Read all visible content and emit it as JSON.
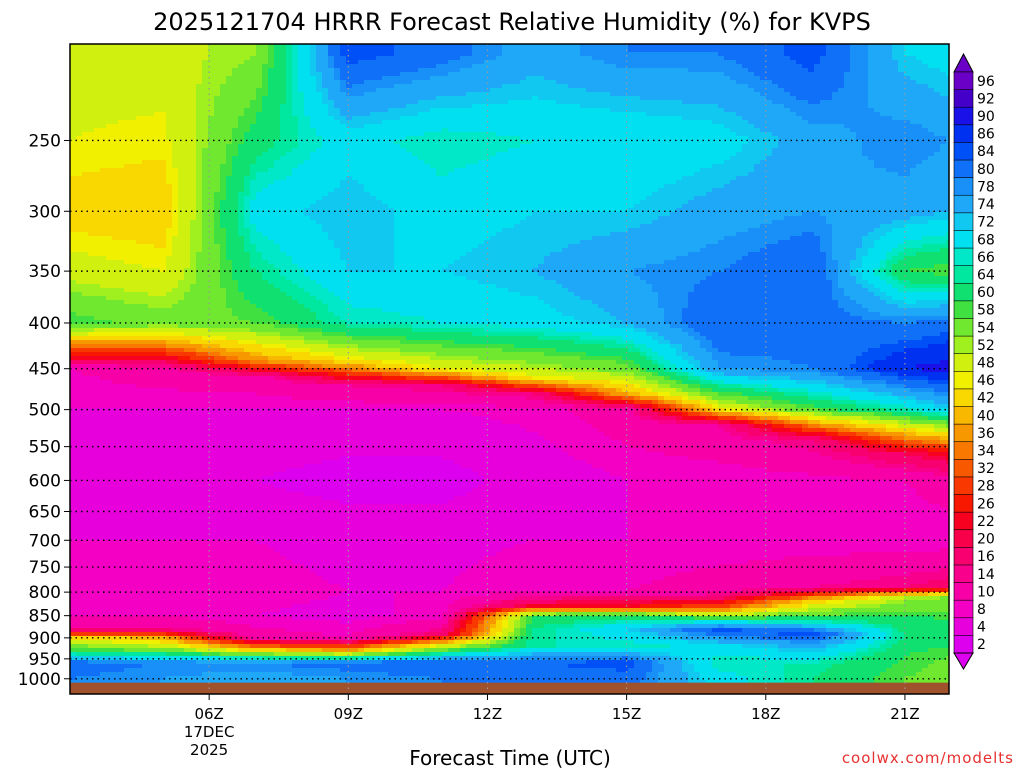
{
  "chart_data": {
    "type": "heatmap",
    "title": "2025121704 HRRR Forecast Relative Humidity (%) for KVPS",
    "xlabel": "Forecast Time (UTC)",
    "credit": "coolwx.com/modelts",
    "y_scale": "log",
    "ylim": [
      1040,
      195
    ],
    "xlim": [
      3,
      21.95
    ],
    "y_ticks": [
      250,
      300,
      350,
      400,
      450,
      500,
      550,
      600,
      650,
      700,
      750,
      800,
      850,
      900,
      950,
      1000
    ],
    "x_ticks": [
      {
        "x": 6,
        "label": "06Z",
        "date_line1": "17DEC",
        "date_line2": "2025"
      },
      {
        "x": 9,
        "label": "09Z"
      },
      {
        "x": 12,
        "label": "12Z"
      },
      {
        "x": 15,
        "label": "15Z"
      },
      {
        "x": 18,
        "label": "18Z"
      },
      {
        "x": 21,
        "label": "21Z"
      }
    ],
    "grid": true,
    "surface_pressure": 1010,
    "colorbar": {
      "labels": [
        "96",
        "92",
        "90",
        "86",
        "84",
        "80",
        "78",
        "74",
        "72",
        "68",
        "66",
        "64",
        "60",
        "58",
        "54",
        "52",
        "48",
        "46",
        "42",
        "40",
        "36",
        "34",
        "32",
        "28",
        "26",
        "22",
        "20",
        "16",
        "14",
        "10",
        "8",
        "4",
        "2"
      ],
      "colors": [
        "#6a00c8",
        "#4400c8",
        "#1a10e8",
        "#0030f0",
        "#0050f8",
        "#1070f8",
        "#1890f8",
        "#20a8f8",
        "#10c8f0",
        "#00e0f0",
        "#00e8c8",
        "#00e8a0",
        "#10e070",
        "#40e040",
        "#70e830",
        "#a0f020",
        "#d0f010",
        "#f0f000",
        "#f8d800",
        "#f8b800",
        "#f89800",
        "#f87800",
        "#f85800",
        "#f83800",
        "#f81800",
        "#f80020",
        "#f8004a",
        "#f80070",
        "#f8008c",
        "#f800a8",
        "#f400c4",
        "#e800dc",
        "#dc00ee"
      ],
      "position": "right"
    },
    "rh_profiles": [
      {
        "x": 3,
        "levels": [
          [
            200,
            50
          ],
          [
            250,
            48
          ],
          [
            300,
            44
          ],
          [
            350,
            50
          ],
          [
            400,
            60
          ],
          [
            420,
            40
          ],
          [
            450,
            10
          ],
          [
            500,
            8
          ],
          [
            600,
            6
          ],
          [
            700,
            8
          ],
          [
            800,
            8
          ],
          [
            850,
            10
          ],
          [
            880,
            14
          ],
          [
            900,
            45
          ],
          [
            930,
            60
          ],
          [
            960,
            82
          ],
          [
            1000,
            80
          ]
        ]
      },
      {
        "x": 5,
        "levels": [
          [
            200,
            50
          ],
          [
            250,
            47
          ],
          [
            300,
            43
          ],
          [
            350,
            48
          ],
          [
            400,
            56
          ],
          [
            420,
            40
          ],
          [
            450,
            12
          ],
          [
            500,
            8
          ],
          [
            600,
            5
          ],
          [
            700,
            8
          ],
          [
            800,
            9
          ],
          [
            850,
            10
          ],
          [
            880,
            14
          ],
          [
            900,
            40
          ],
          [
            930,
            58
          ],
          [
            960,
            80
          ],
          [
            1000,
            78
          ]
        ]
      },
      {
        "x": 7,
        "levels": [
          [
            200,
            54
          ],
          [
            250,
            62
          ],
          [
            300,
            70
          ],
          [
            350,
            64
          ],
          [
            400,
            58
          ],
          [
            440,
            38
          ],
          [
            460,
            12
          ],
          [
            500,
            8
          ],
          [
            600,
            4
          ],
          [
            700,
            8
          ],
          [
            800,
            9
          ],
          [
            850,
            8
          ],
          [
            900,
            12
          ],
          [
            930,
            45
          ],
          [
            960,
            80
          ],
          [
            1000,
            76
          ]
        ]
      },
      {
        "x": 9,
        "levels": [
          [
            200,
            86
          ],
          [
            250,
            70
          ],
          [
            300,
            74
          ],
          [
            350,
            72
          ],
          [
            400,
            66
          ],
          [
            440,
            46
          ],
          [
            470,
            14
          ],
          [
            500,
            8
          ],
          [
            600,
            2
          ],
          [
            700,
            7
          ],
          [
            800,
            8
          ],
          [
            850,
            7
          ],
          [
            900,
            10
          ],
          [
            930,
            40
          ],
          [
            960,
            82
          ],
          [
            1000,
            78
          ]
        ]
      },
      {
        "x": 11,
        "levels": [
          [
            200,
            82
          ],
          [
            250,
            66
          ],
          [
            300,
            70
          ],
          [
            350,
            72
          ],
          [
            400,
            68
          ],
          [
            450,
            48
          ],
          [
            470,
            16
          ],
          [
            500,
            8
          ],
          [
            600,
            2
          ],
          [
            700,
            7
          ],
          [
            800,
            8
          ],
          [
            850,
            9
          ],
          [
            890,
            16
          ],
          [
            920,
            50
          ],
          [
            960,
            84
          ],
          [
            1000,
            80
          ]
        ]
      },
      {
        "x": 13,
        "levels": [
          [
            200,
            76
          ],
          [
            250,
            68
          ],
          [
            300,
            72
          ],
          [
            350,
            74
          ],
          [
            400,
            70
          ],
          [
            460,
            48
          ],
          [
            480,
            16
          ],
          [
            500,
            9
          ],
          [
            600,
            6
          ],
          [
            700,
            8
          ],
          [
            800,
            10
          ],
          [
            830,
            24
          ],
          [
            850,
            60
          ],
          [
            880,
            64
          ],
          [
            920,
            66
          ],
          [
            960,
            84
          ],
          [
            1000,
            80
          ]
        ]
      },
      {
        "x": 15,
        "levels": [
          [
            200,
            80
          ],
          [
            250,
            68
          ],
          [
            300,
            72
          ],
          [
            350,
            78
          ],
          [
            400,
            74
          ],
          [
            450,
            56
          ],
          [
            480,
            40
          ],
          [
            500,
            12
          ],
          [
            600,
            8
          ],
          [
            700,
            8
          ],
          [
            800,
            10
          ],
          [
            830,
            26
          ],
          [
            850,
            62
          ],
          [
            880,
            72
          ],
          [
            920,
            66
          ],
          [
            960,
            86
          ],
          [
            1000,
            82
          ]
        ]
      },
      {
        "x": 17,
        "levels": [
          [
            200,
            80
          ],
          [
            250,
            70
          ],
          [
            300,
            76
          ],
          [
            350,
            80
          ],
          [
            400,
            84
          ],
          [
            450,
            78
          ],
          [
            500,
            46
          ],
          [
            520,
            14
          ],
          [
            600,
            8
          ],
          [
            700,
            8
          ],
          [
            800,
            12
          ],
          [
            830,
            30
          ],
          [
            860,
            64
          ],
          [
            880,
            86
          ],
          [
            920,
            70
          ],
          [
            960,
            66
          ],
          [
            1000,
            70
          ]
        ]
      },
      {
        "x": 19,
        "levels": [
          [
            200,
            86
          ],
          [
            250,
            76
          ],
          [
            300,
            78
          ],
          [
            350,
            84
          ],
          [
            400,
            82
          ],
          [
            450,
            80
          ],
          [
            500,
            58
          ],
          [
            540,
            16
          ],
          [
            600,
            9
          ],
          [
            700,
            8
          ],
          [
            790,
            14
          ],
          [
            820,
            44
          ],
          [
            860,
            64
          ],
          [
            890,
            86
          ],
          [
            920,
            76
          ],
          [
            960,
            66
          ],
          [
            1000,
            64
          ]
        ]
      },
      {
        "x": 21,
        "levels": [
          [
            200,
            72
          ],
          [
            250,
            80
          ],
          [
            300,
            76
          ],
          [
            350,
            60
          ],
          [
            400,
            80
          ],
          [
            450,
            90
          ],
          [
            500,
            66
          ],
          [
            560,
            20
          ],
          [
            600,
            10
          ],
          [
            700,
            8
          ],
          [
            790,
            16
          ],
          [
            810,
            52
          ],
          [
            860,
            62
          ],
          [
            900,
            64
          ],
          [
            940,
            60
          ],
          [
            1000,
            58
          ]
        ]
      },
      {
        "x": 21.95,
        "levels": [
          [
            200,
            70
          ],
          [
            250,
            78
          ],
          [
            300,
            74
          ],
          [
            350,
            58
          ],
          [
            400,
            82
          ],
          [
            450,
            92
          ],
          [
            500,
            72
          ],
          [
            560,
            24
          ],
          [
            600,
            12
          ],
          [
            700,
            8
          ],
          [
            790,
            18
          ],
          [
            810,
            54
          ],
          [
            860,
            60
          ],
          [
            900,
            62
          ],
          [
            940,
            58
          ],
          [
            1000,
            56
          ]
        ]
      }
    ]
  }
}
